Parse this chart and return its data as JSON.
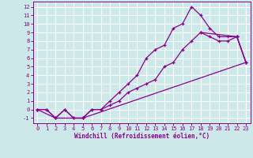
{
  "bg_color": "#cce8e8",
  "grid_color": "#ffffff",
  "line_color": "#8b008b",
  "xlabel": "Windchill (Refroidissement éolien,°C)",
  "xlabel_color": "#8b008b",
  "tick_color": "#8b008b",
  "xlim": [
    -0.5,
    23.5
  ],
  "ylim": [
    -1.6,
    12.6
  ],
  "xticks": [
    0,
    1,
    2,
    3,
    4,
    5,
    6,
    7,
    8,
    9,
    10,
    11,
    12,
    13,
    14,
    15,
    16,
    17,
    18,
    19,
    20,
    21,
    22,
    23
  ],
  "yticks": [
    -1,
    0,
    1,
    2,
    3,
    4,
    5,
    6,
    7,
    8,
    9,
    10,
    11,
    12
  ],
  "line1_x": [
    0,
    1,
    2,
    3,
    4,
    5,
    6,
    7,
    8,
    9,
    10,
    11,
    12,
    13,
    14,
    15,
    16,
    17,
    18,
    19,
    20,
    21,
    22,
    23
  ],
  "line1_y": [
    0,
    0,
    -1,
    0,
    -1,
    -1,
    0,
    0,
    1,
    2,
    3,
    4,
    6,
    7,
    7.5,
    9.5,
    10,
    12,
    11,
    9.5,
    8.5,
    8.5,
    8.5,
    5.5
  ],
  "line2_x": [
    0,
    1,
    2,
    3,
    4,
    5,
    6,
    7,
    8,
    9,
    10,
    11,
    12,
    13,
    14,
    15,
    16,
    17,
    18,
    19,
    20,
    21,
    22,
    23
  ],
  "line2_y": [
    0,
    0,
    -1,
    0,
    -1,
    -1,
    0,
    0,
    0.5,
    1,
    2,
    2.5,
    3,
    3.5,
    5,
    5.5,
    7,
    8,
    9,
    8.5,
    8,
    8,
    8.5,
    5.5
  ],
  "line3_x": [
    0,
    2,
    5,
    23,
    22,
    18,
    16,
    13,
    10,
    5,
    2,
    0
  ],
  "line3_y": [
    0,
    -1,
    -1,
    5.5,
    8.5,
    9,
    7,
    3.5,
    3,
    -1,
    -1,
    0
  ]
}
